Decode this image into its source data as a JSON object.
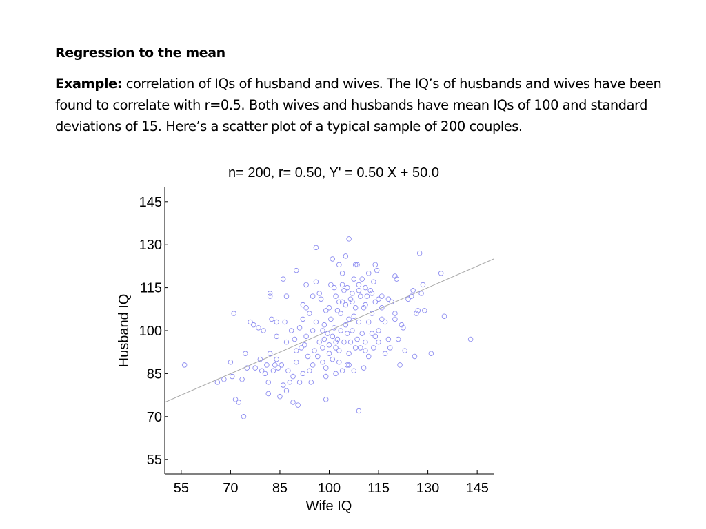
{
  "slide": {
    "title": "Regression to the mean",
    "example_label": "Example:",
    "example_text": " correlation of IQs of husband and wives. The IQ’s of husbands and wives have been found to correlate with r=0.5.  Both wives and husbands have mean IQs of 100 and standard deviations of 15.  Here’s  a scatter plot of a typical sample of 200 couples."
  },
  "chart_data": {
    "type": "scatter",
    "title": "n= 200, r= 0.50, Y' =  0.50 X + 50.0",
    "xlabel": "Wife IQ",
    "ylabel": "Husband IQ",
    "xlim": [
      50,
      150
    ],
    "ylim": [
      50,
      150
    ],
    "xticks": [
      55,
      70,
      85,
      100,
      115,
      130,
      145
    ],
    "yticks": [
      55,
      70,
      85,
      100,
      115,
      130,
      145
    ],
    "grid": false,
    "marker_color": "#8c8cf0",
    "line_color": "#a8a8a8",
    "regression_line": {
      "slope": 0.5,
      "intercept": 50.0
    },
    "points": [
      [
        56,
        88
      ],
      [
        66,
        82
      ],
      [
        68,
        83
      ],
      [
        70,
        89
      ],
      [
        70.5,
        84
      ],
      [
        71,
        106
      ],
      [
        71.5,
        76
      ],
      [
        72.5,
        75
      ],
      [
        73.5,
        83
      ],
      [
        74,
        70
      ],
      [
        74.5,
        92
      ],
      [
        75,
        87
      ],
      [
        76,
        103
      ],
      [
        77,
        102
      ],
      [
        77.5,
        87
      ],
      [
        78.5,
        101
      ],
      [
        79,
        90
      ],
      [
        79.5,
        86
      ],
      [
        80,
        100
      ],
      [
        80.5,
        85
      ],
      [
        81,
        88
      ],
      [
        81.5,
        82
      ],
      [
        81.5,
        78
      ],
      [
        82,
        112
      ],
      [
        82,
        113
      ],
      [
        82,
        92
      ],
      [
        82.5,
        104
      ],
      [
        83,
        86
      ],
      [
        83.5,
        88
      ],
      [
        84,
        103
      ],
      [
        84,
        90
      ],
      [
        84.5,
        87
      ],
      [
        85,
        77
      ],
      [
        85.5,
        88
      ],
      [
        86,
        81
      ],
      [
        86,
        118
      ],
      [
        86.5,
        103
      ],
      [
        87,
        79
      ],
      [
        87,
        112
      ],
      [
        87.5,
        86
      ],
      [
        88,
        82
      ],
      [
        88.5,
        100
      ],
      [
        89,
        84
      ],
      [
        89,
        75
      ],
      [
        89.5,
        97
      ],
      [
        90,
        121
      ],
      [
        90,
        89
      ],
      [
        90.5,
        74
      ],
      [
        91,
        82
      ],
      [
        91.5,
        94
      ],
      [
        92,
        104
      ],
      [
        92,
        85
      ],
      [
        92.5,
        95
      ],
      [
        93,
        98
      ],
      [
        93,
        116
      ],
      [
        93.5,
        91
      ],
      [
        94,
        86
      ],
      [
        94,
        106
      ],
      [
        94.5,
        82
      ],
      [
        95,
        100
      ],
      [
        95,
        88
      ],
      [
        95.5,
        93
      ],
      [
        96,
        117
      ],
      [
        96,
        103
      ],
      [
        96,
        129
      ],
      [
        96.5,
        91
      ],
      [
        97,
        96
      ],
      [
        97.5,
        111
      ],
      [
        98,
        94
      ],
      [
        98,
        100
      ],
      [
        98.5,
        102
      ],
      [
        98.5,
        97
      ],
      [
        99,
        87
      ],
      [
        99,
        84
      ],
      [
        99,
        76
      ],
      [
        99.5,
        99
      ],
      [
        100,
        108
      ],
      [
        100,
        95
      ],
      [
        100,
        92
      ],
      [
        100.5,
        116
      ],
      [
        100.5,
        104
      ],
      [
        101,
        90
      ],
      [
        101,
        98
      ],
      [
        101.5,
        115
      ],
      [
        101.5,
        101
      ],
      [
        102,
        85
      ],
      [
        102,
        112
      ],
      [
        102,
        94
      ],
      [
        102.5,
        107
      ],
      [
        102.5,
        97
      ],
      [
        103,
        123
      ],
      [
        103,
        89
      ],
      [
        103,
        93
      ],
      [
        103.5,
        106
      ],
      [
        103.5,
        100
      ],
      [
        104,
        120
      ],
      [
        104,
        110
      ],
      [
        104,
        86
      ],
      [
        104.5,
        114
      ],
      [
        104.5,
        96
      ],
      [
        105,
        126
      ],
      [
        105,
        109
      ],
      [
        105,
        102
      ],
      [
        105.5,
        88
      ],
      [
        105.5,
        115
      ],
      [
        105.5,
        99
      ],
      [
        106,
        104
      ],
      [
        106,
        132
      ],
      [
        106,
        92
      ],
      [
        106.5,
        111
      ],
      [
        106.5,
        96
      ],
      [
        107,
        113
      ],
      [
        107,
        100
      ],
      [
        107.5,
        105
      ],
      [
        107.5,
        118
      ],
      [
        107.5,
        86
      ],
      [
        108,
        94
      ],
      [
        108,
        108
      ],
      [
        108.5,
        123
      ],
      [
        108.5,
        97
      ],
      [
        109,
        72
      ],
      [
        109,
        116
      ],
      [
        109,
        103
      ],
      [
        109.5,
        112
      ],
      [
        109.5,
        94
      ],
      [
        110,
        118
      ],
      [
        110,
        99
      ],
      [
        110.5,
        87
      ],
      [
        110.5,
        108
      ],
      [
        111,
        115
      ],
      [
        111,
        96
      ],
      [
        111,
        93
      ],
      [
        111.5,
        112
      ],
      [
        112,
        120
      ],
      [
        112,
        103
      ],
      [
        112,
        91
      ],
      [
        112.5,
        114
      ],
      [
        113,
        113
      ],
      [
        113,
        106
      ],
      [
        113.5,
        117
      ],
      [
        113.5,
        94
      ],
      [
        114,
        123
      ],
      [
        114,
        110
      ],
      [
        114,
        98
      ],
      [
        114.5,
        121
      ],
      [
        115,
        111
      ],
      [
        115,
        96
      ],
      [
        116,
        112
      ],
      [
        116,
        104
      ],
      [
        117,
        92
      ],
      [
        118,
        111
      ],
      [
        118,
        97
      ],
      [
        118.5,
        94
      ],
      [
        119,
        110
      ],
      [
        120,
        104
      ],
      [
        120,
        119
      ],
      [
        120.5,
        118
      ],
      [
        121,
        97
      ],
      [
        121.5,
        88
      ],
      [
        122,
        102
      ],
      [
        122.5,
        101
      ],
      [
        123,
        93
      ],
      [
        124,
        111
      ],
      [
        125,
        112
      ],
      [
        125.5,
        114
      ],
      [
        126,
        91
      ],
      [
        126.5,
        106
      ],
      [
        127,
        107
      ],
      [
        127.5,
        127
      ],
      [
        128,
        113
      ],
      [
        128.5,
        116
      ],
      [
        129,
        107
      ],
      [
        131,
        92
      ],
      [
        134,
        120
      ],
      [
        135,
        105
      ],
      [
        143,
        97
      ],
      [
        92,
        109
      ],
      [
        97,
        113
      ],
      [
        108,
        123
      ],
      [
        115,
        100
      ],
      [
        95,
        112
      ],
      [
        103,
        110
      ],
      [
        111,
        109
      ],
      [
        99,
        107
      ],
      [
        104,
        116
      ],
      [
        117,
        103
      ],
      [
        87,
        96
      ],
      [
        91,
        101
      ],
      [
        106,
        88
      ],
      [
        113,
        99
      ],
      [
        120,
        106
      ],
      [
        84,
        98
      ],
      [
        101,
        125
      ],
      [
        109,
        114
      ],
      [
        98,
        89
      ],
      [
        93,
        108
      ],
      [
        107,
        110
      ],
      [
        116,
        108
      ],
      [
        90,
        93
      ],
      [
        102,
        96
      ]
    ]
  }
}
